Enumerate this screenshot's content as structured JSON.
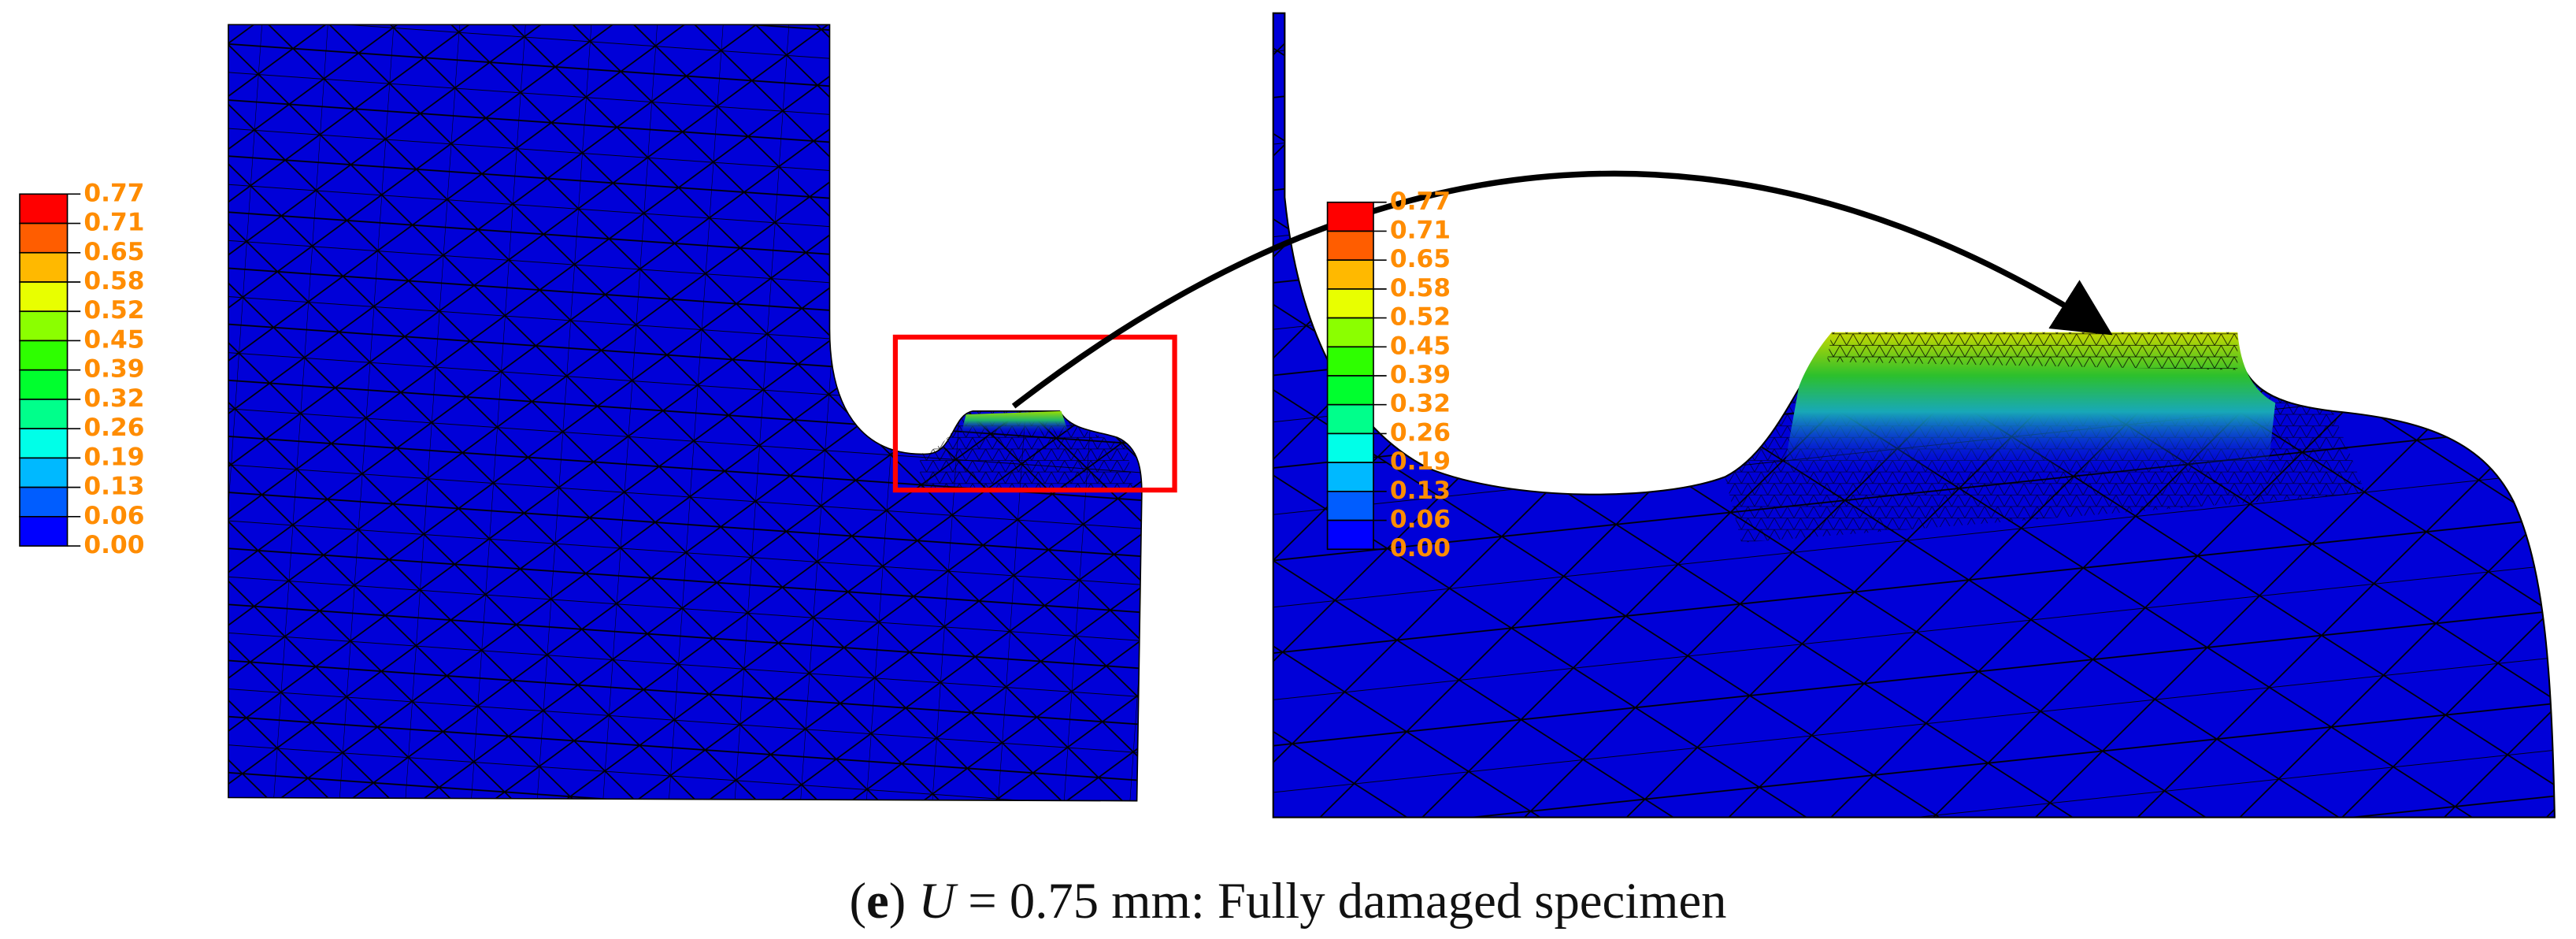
{
  "left_panel": {
    "legend": {
      "labels": [
        "0.77",
        "0.71",
        "0.65",
        "0.58",
        "0.52",
        "0.45",
        "0.39",
        "0.32",
        "0.26",
        "0.19",
        "0.13",
        "0.06",
        "0.00"
      ]
    }
  },
  "right_panel": {
    "legend": {
      "labels": [
        "0.77",
        "0.71",
        "0.65",
        "0.58",
        "0.52",
        "0.45",
        "0.39",
        "0.32",
        "0.26",
        "0.19",
        "0.13",
        "0.06",
        "0.00"
      ]
    }
  },
  "caption": {
    "open": "(",
    "label": "e",
    "close": ")",
    "variable": "U",
    "text": "= 0.75 mm: Fully damaged specimen"
  }
}
